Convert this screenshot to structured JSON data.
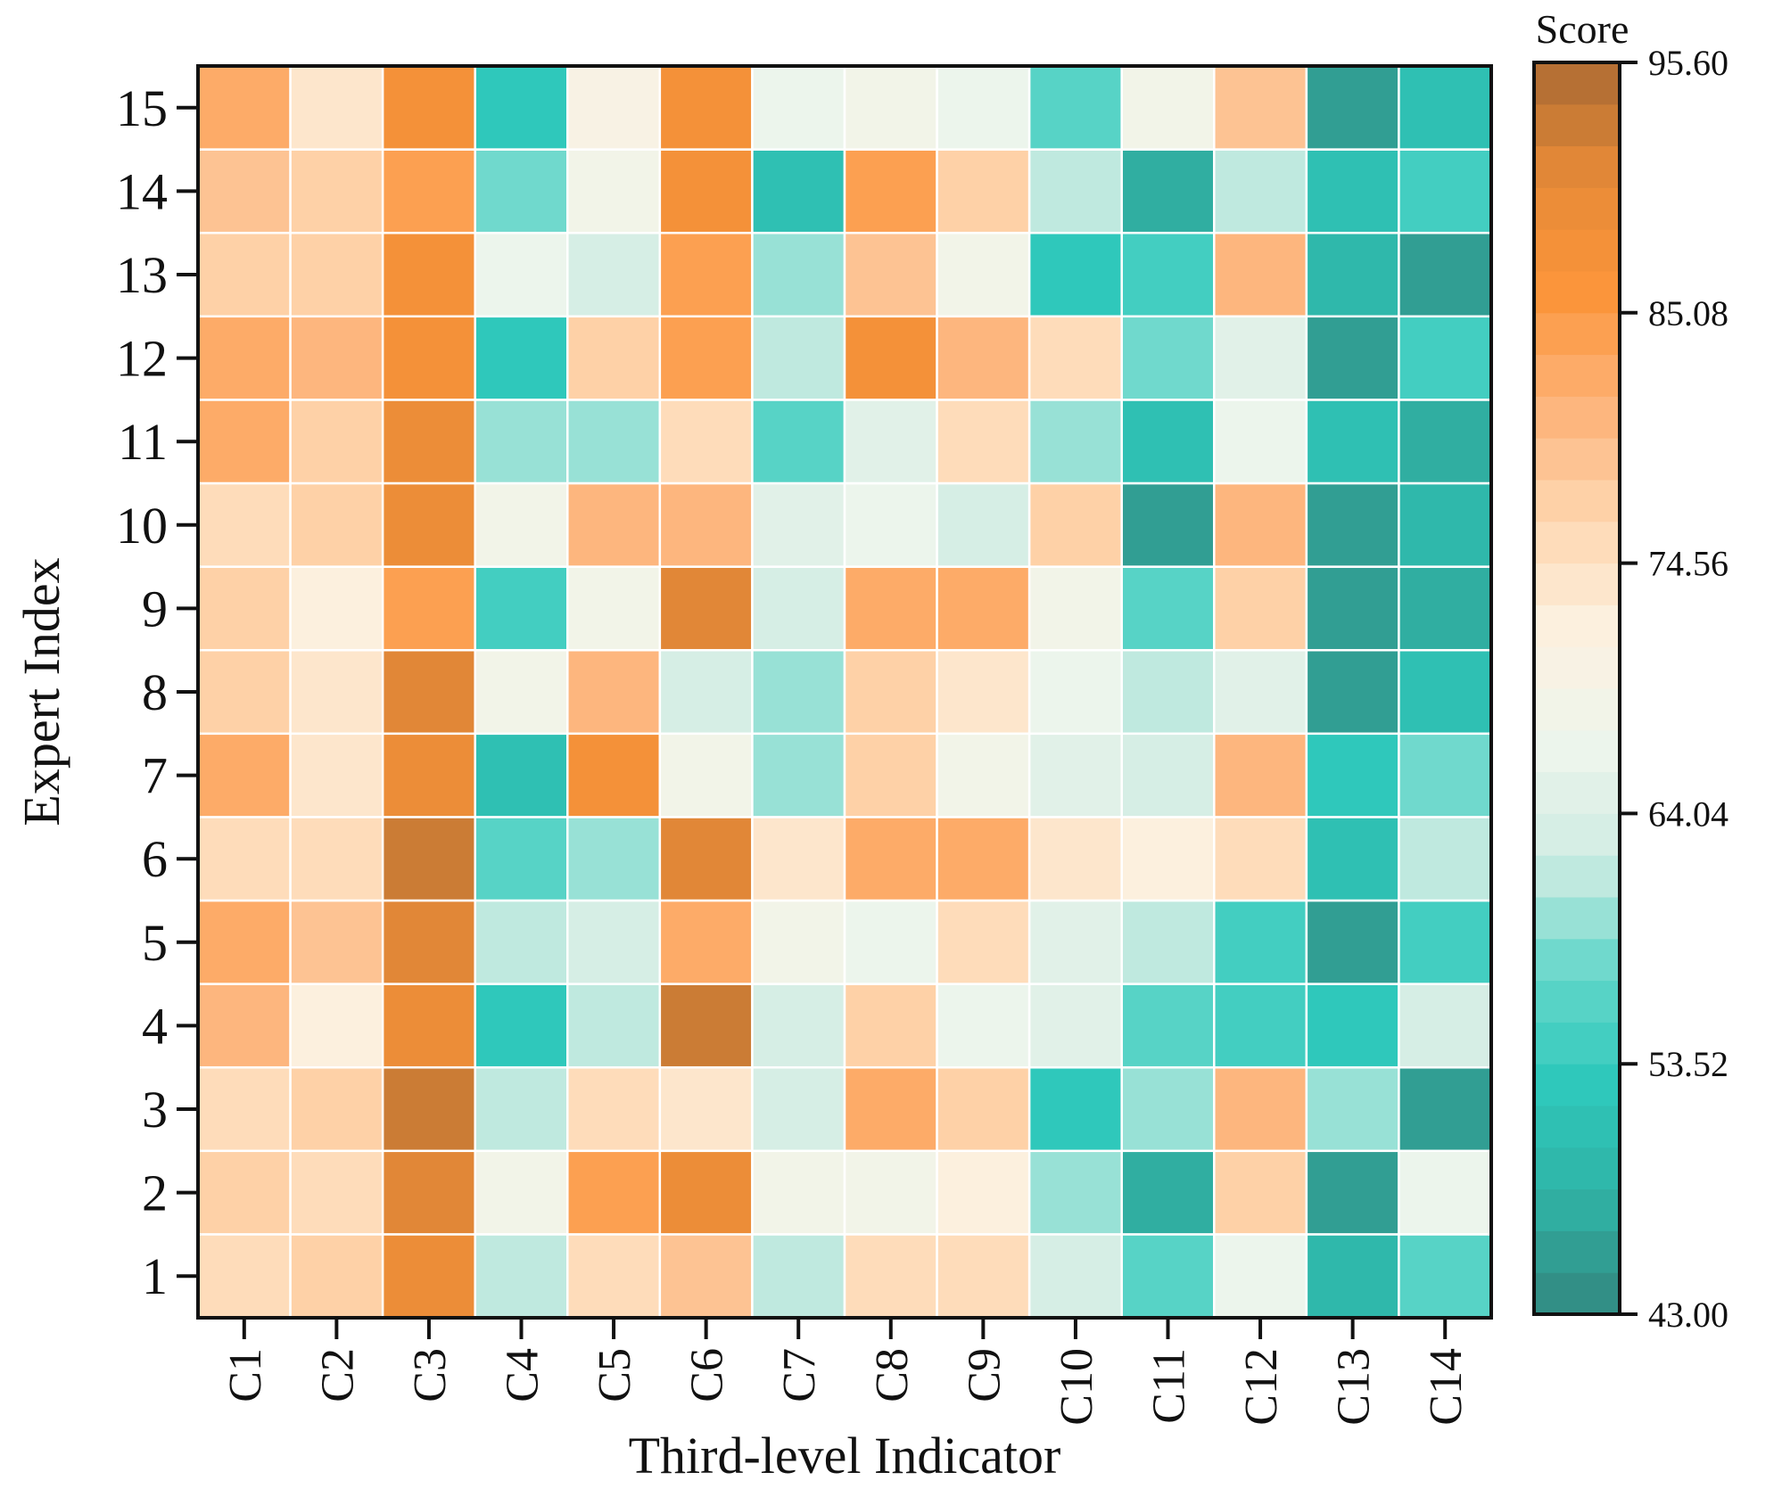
{
  "chart_data": {
    "type": "heatmap",
    "title": "",
    "xlabel": "Third-level Indicator",
    "ylabel": "Expert Index",
    "x_categories": [
      "C1",
      "C2",
      "C3",
      "C4",
      "C5",
      "C6",
      "C7",
      "C8",
      "C9",
      "C10",
      "C11",
      "C12",
      "C13",
      "C14"
    ],
    "y_categories": [
      "1",
      "2",
      "3",
      "4",
      "5",
      "6",
      "7",
      "8",
      "9",
      "10",
      "11",
      "12",
      "13",
      "14",
      "15"
    ],
    "values": [
      [
        75,
        77,
        89,
        61,
        75,
        79,
        61,
        76,
        75,
        63,
        56,
        66,
        49,
        56
      ],
      [
        78,
        75,
        92,
        68,
        85,
        90,
        68,
        68,
        72,
        59,
        47,
        78,
        46,
        67
      ],
      [
        76,
        78,
        93,
        62,
        75,
        74,
        63,
        83,
        78,
        52,
        60,
        80,
        60,
        46
      ],
      [
        80,
        72,
        89,
        52,
        61,
        93,
        63,
        78,
        66,
        65,
        56,
        55,
        52,
        63
      ],
      [
        82,
        79,
        91,
        62,
        64,
        82,
        69,
        67,
        76,
        65,
        62,
        54,
        46,
        55
      ],
      [
        76,
        75,
        93,
        56,
        59,
        91,
        74,
        83,
        83,
        74,
        72,
        75,
        51,
        62
      ],
      [
        82,
        73,
        90,
        51,
        87,
        69,
        59,
        78,
        69,
        65,
        63,
        81,
        53,
        58
      ],
      [
        78,
        73,
        91,
        69,
        80,
        63,
        59,
        78,
        73,
        66,
        62,
        65,
        46,
        51
      ],
      [
        78,
        72,
        85,
        55,
        69,
        92,
        63,
        82,
        83,
        69,
        56,
        77,
        46,
        48
      ],
      [
        76,
        77,
        90,
        69,
        80,
        80,
        65,
        66,
        63,
        78,
        46,
        80,
        46,
        49
      ],
      [
        82,
        78,
        89,
        60,
        60,
        76,
        56,
        65,
        75,
        60,
        51,
        66,
        51,
        48
      ],
      [
        82,
        80,
        88,
        53,
        78,
        84,
        61,
        87,
        81,
        75,
        58,
        65,
        46,
        55
      ],
      [
        77,
        77,
        88,
        66,
        64,
        85,
        59,
        79,
        69,
        53,
        54,
        80,
        50,
        46
      ],
      [
        79,
        77,
        85,
        58,
        69,
        88,
        51,
        85,
        78,
        62,
        47,
        62,
        51,
        55
      ],
      [
        83,
        73,
        87,
        52,
        71,
        88,
        66,
        68,
        67,
        56,
        69,
        79,
        46,
        51
      ]
    ],
    "colorbar": {
      "title": "Score",
      "min": 43.0,
      "max": 95.6,
      "ticks": [
        "43.00",
        "53.52",
        "64.04",
        "74.56",
        "85.08",
        "95.60"
      ],
      "levels": 30,
      "colors": [
        "#33877f",
        "#30b1a4",
        "#2ec8bb",
        "#64d7ca",
        "#cfece3",
        "#eef5ec",
        "#fcf1e0",
        "#fed6b0",
        "#fdb277",
        "#fb943a",
        "#e68a37",
        "#ab6a33"
      ]
    }
  }
}
